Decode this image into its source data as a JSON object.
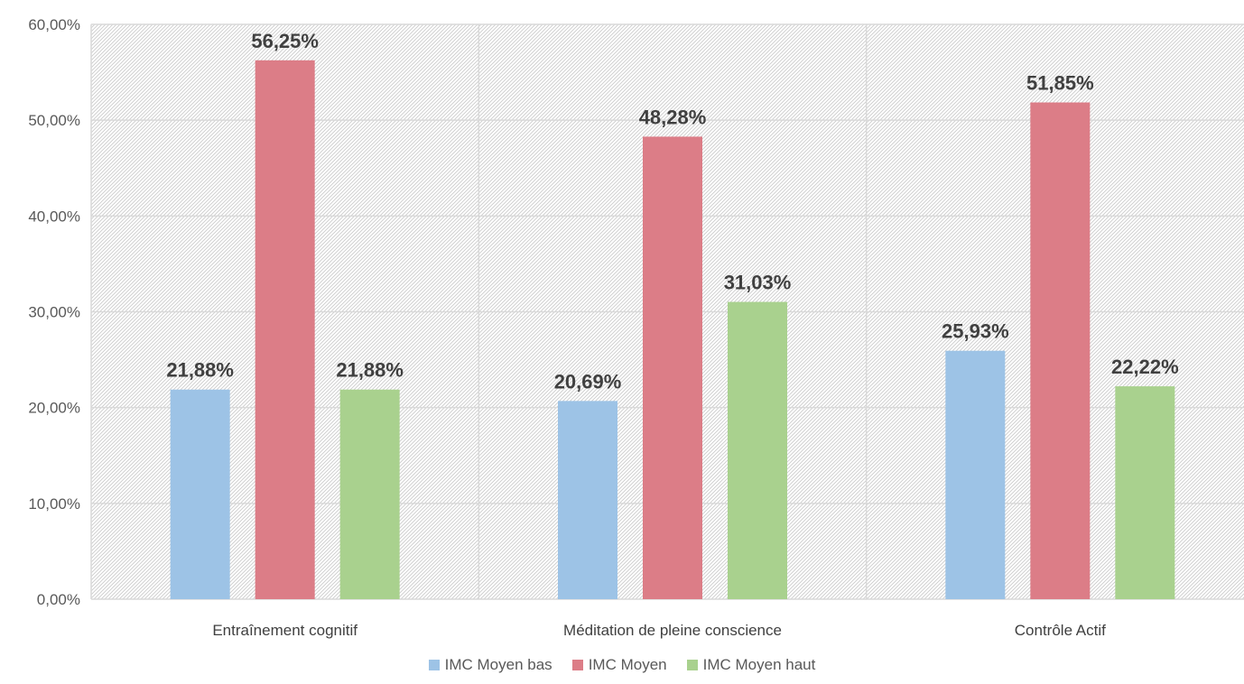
{
  "chart_data": {
    "type": "bar",
    "categories": [
      "Entraînement cognitif",
      "Méditation de pleine conscience",
      "Contrôle Actif"
    ],
    "series": [
      {
        "name": "IMC Moyen bas",
        "values": [
          21.88,
          20.69,
          25.93
        ],
        "labels": [
          "21,88%",
          "20,69%",
          "25,93%"
        ],
        "color": "#9dc3e6"
      },
      {
        "name": "IMC Moyen",
        "values": [
          56.25,
          48.28,
          51.85
        ],
        "labels": [
          "56,25%",
          "48,28%",
          "51,85%"
        ],
        "color": "#dc7d87"
      },
      {
        "name": "IMC Moyen haut",
        "values": [
          21.88,
          31.03,
          22.22
        ],
        "labels": [
          "21,88%",
          "31,03%",
          "22,22%"
        ],
        "color": "#a9d18e"
      }
    ],
    "title": "",
    "xlabel": "",
    "ylabel": "",
    "ylim": [
      0,
      60
    ],
    "yticks": [
      0,
      10,
      20,
      30,
      40,
      50,
      60
    ],
    "ytick_labels": [
      "0,00%",
      "10,00%",
      "20,00%",
      "30,00%",
      "40,00%",
      "50,00%",
      "60,00%"
    ],
    "grid": true,
    "legend_position": "bottom"
  }
}
